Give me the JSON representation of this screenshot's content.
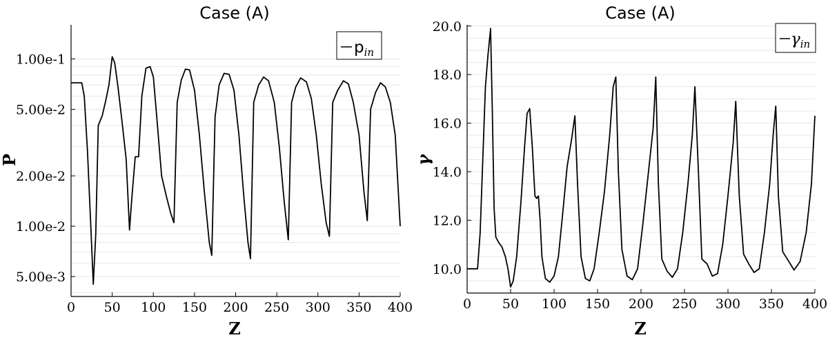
{
  "chart_data": [
    {
      "type": "line",
      "title": "Case (A)",
      "xlabel": "Z",
      "ylabel": "P",
      "xlim": [
        0,
        400
      ],
      "ylim": [
        0.0038,
        0.16
      ],
      "yscale": "log",
      "grid": "horizontal minor lines",
      "legend_position": "top-right",
      "x_ticks": [
        0,
        50,
        100,
        150,
        200,
        250,
        300,
        350,
        400
      ],
      "x_tick_labels": [
        "0",
        "50",
        "100",
        "150",
        "200",
        "250",
        "300",
        "350",
        "400"
      ],
      "y_ticks": [
        0.1,
        0.05,
        0.02,
        0.01,
        0.005
      ],
      "y_tick_labels": [
        "1.00e-1",
        "5.00e-2",
        "2.00e-2",
        "1.00e-2",
        "5.00e-3"
      ],
      "series": [
        {
          "name": "p_in",
          "legend_main": "p",
          "legend_sub": "in",
          "color": "#000000",
          "x": [
            0,
            13,
            16,
            20,
            24,
            27,
            30,
            33,
            38,
            42,
            46,
            50,
            53,
            57,
            62,
            67,
            71,
            74,
            78,
            82,
            86,
            91,
            96,
            100,
            105,
            110,
            116,
            121,
            125,
            129,
            134,
            139,
            144,
            150,
            156,
            162,
            168,
            171,
            175,
            180,
            186,
            192,
            198,
            204,
            210,
            215,
            218,
            222,
            228,
            234,
            240,
            247,
            253,
            259,
            264,
            268,
            273,
            279,
            286,
            292,
            298,
            304,
            310,
            314,
            318,
            324,
            331,
            337,
            343,
            350,
            356,
            360,
            364,
            370,
            376,
            382,
            388,
            394,
            400
          ],
          "y": [
            0.072,
            0.072,
            0.06,
            0.028,
            0.01,
            0.0045,
            0.009,
            0.04,
            0.046,
            0.056,
            0.07,
            0.103,
            0.095,
            0.068,
            0.042,
            0.025,
            0.0095,
            0.015,
            0.026,
            0.026,
            0.06,
            0.088,
            0.09,
            0.078,
            0.04,
            0.02,
            0.015,
            0.012,
            0.0105,
            0.055,
            0.075,
            0.087,
            0.086,
            0.065,
            0.035,
            0.016,
            0.008,
            0.0067,
            0.045,
            0.07,
            0.082,
            0.081,
            0.065,
            0.035,
            0.015,
            0.008,
            0.0064,
            0.055,
            0.07,
            0.078,
            0.074,
            0.055,
            0.03,
            0.014,
            0.0083,
            0.055,
            0.068,
            0.077,
            0.073,
            0.058,
            0.035,
            0.018,
            0.0105,
            0.0087,
            0.055,
            0.065,
            0.074,
            0.071,
            0.055,
            0.035,
            0.016,
            0.0108,
            0.05,
            0.063,
            0.072,
            0.068,
            0.055,
            0.035,
            0.01
          ]
        }
      ]
    },
    {
      "type": "line",
      "title": "Case (A)",
      "xlabel": "Z",
      "ylabel": "γ",
      "xlim": [
        0,
        400
      ],
      "ylim": [
        9.0,
        20.05
      ],
      "grid": "horizontal minor lines",
      "legend_position": "top-right",
      "x_ticks": [
        0,
        50,
        100,
        150,
        200,
        250,
        300,
        350,
        400
      ],
      "x_tick_labels": [
        "0",
        "50",
        "100",
        "150",
        "200",
        "250",
        "300",
        "350",
        "400"
      ],
      "y_ticks": [
        10,
        12,
        14,
        16,
        18,
        20
      ],
      "y_tick_labels": [
        "10.0",
        "12.0",
        "14.0",
        "16.0",
        "18.0",
        "20.0"
      ],
      "series": [
        {
          "name": "γ_in",
          "legend_main": "γ",
          "legend_sub": "in",
          "color": "#000000",
          "x": [
            0,
            12,
            15,
            18,
            21,
            24,
            27,
            29,
            31,
            33,
            36,
            40,
            44,
            47,
            50,
            53,
            57,
            62,
            66,
            69,
            72,
            75,
            78,
            80,
            82,
            84,
            86,
            90,
            95,
            100,
            105,
            110,
            115,
            120,
            124,
            127,
            131,
            136,
            141,
            146,
            152,
            158,
            164,
            168,
            171,
            174,
            178,
            184,
            190,
            196,
            202,
            208,
            214,
            217,
            220,
            224,
            230,
            236,
            242,
            248,
            254,
            259,
            262,
            266,
            270,
            276,
            282,
            288,
            294,
            300,
            306,
            309,
            313,
            318,
            324,
            330,
            336,
            342,
            348,
            352,
            355,
            358,
            363,
            370,
            376,
            383,
            390,
            396,
            400
          ],
          "y": [
            10.0,
            10.0,
            11.5,
            14.5,
            17.5,
            18.8,
            19.9,
            16.5,
            12.5,
            11.3,
            11.1,
            10.9,
            10.5,
            10.0,
            9.25,
            9.5,
            10.5,
            12.8,
            15.0,
            16.4,
            16.6,
            15.0,
            13.0,
            12.9,
            13.0,
            12.0,
            10.5,
            9.6,
            9.45,
            9.7,
            10.5,
            12.3,
            14.2,
            15.3,
            16.3,
            13.5,
            10.5,
            9.6,
            9.5,
            10.0,
            11.5,
            13.2,
            15.5,
            17.5,
            17.9,
            14.0,
            10.8,
            9.7,
            9.55,
            10.0,
            11.8,
            13.8,
            15.8,
            17.9,
            13.5,
            10.4,
            9.9,
            9.65,
            10.0,
            11.5,
            13.5,
            15.5,
            17.5,
            14.0,
            10.4,
            10.2,
            9.7,
            9.8,
            11.0,
            13.0,
            15.2,
            16.9,
            13.0,
            10.6,
            10.2,
            9.85,
            10.0,
            11.5,
            13.5,
            15.5,
            16.7,
            13.0,
            10.7,
            10.3,
            9.95,
            10.3,
            11.5,
            13.5,
            16.3
          ]
        }
      ]
    }
  ]
}
